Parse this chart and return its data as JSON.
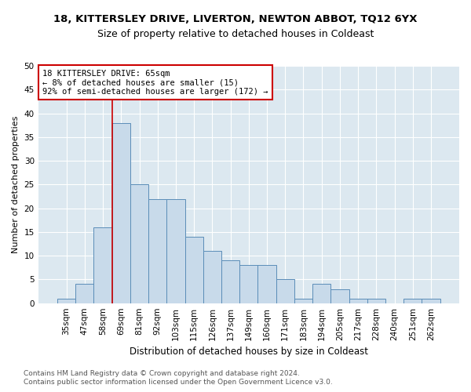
{
  "title1": "18, KITTERSLEY DRIVE, LIVERTON, NEWTON ABBOT, TQ12 6YX",
  "title2": "Size of property relative to detached houses in Coldeast",
  "xlabel": "Distribution of detached houses by size in Coldeast",
  "ylabel": "Number of detached properties",
  "categories": [
    "35sqm",
    "47sqm",
    "58sqm",
    "69sqm",
    "81sqm",
    "92sqm",
    "103sqm",
    "115sqm",
    "126sqm",
    "137sqm",
    "149sqm",
    "160sqm",
    "171sqm",
    "183sqm",
    "194sqm",
    "205sqm",
    "217sqm",
    "228sqm",
    "240sqm",
    "251sqm",
    "262sqm"
  ],
  "values": [
    1,
    4,
    16,
    38,
    25,
    22,
    22,
    14,
    11,
    9,
    8,
    8,
    5,
    1,
    4,
    3,
    1,
    1,
    0,
    1,
    1
  ],
  "bar_color": "#c8daea",
  "bar_edge_color": "#5b8db8",
  "vline_x": 2.5,
  "vline_color": "#cc0000",
  "annotation_line1": "18 KITTERSLEY DRIVE: 65sqm",
  "annotation_line2": "← 8% of detached houses are smaller (15)",
  "annotation_line3": "92% of semi-detached houses are larger (172) →",
  "annotation_box_color": "#cc0000",
  "ylim": [
    0,
    50
  ],
  "yticks": [
    0,
    5,
    10,
    15,
    20,
    25,
    30,
    35,
    40,
    45,
    50
  ],
  "background_color": "#dce8f0",
  "grid_color": "#ffffff",
  "footer1": "Contains HM Land Registry data © Crown copyright and database right 2024.",
  "footer2": "Contains public sector information licensed under the Open Government Licence v3.0.",
  "title1_fontsize": 9.5,
  "title2_fontsize": 9,
  "xlabel_fontsize": 8.5,
  "ylabel_fontsize": 8,
  "tick_fontsize": 7.5,
  "annotation_fontsize": 7.5,
  "footer_fontsize": 6.5
}
